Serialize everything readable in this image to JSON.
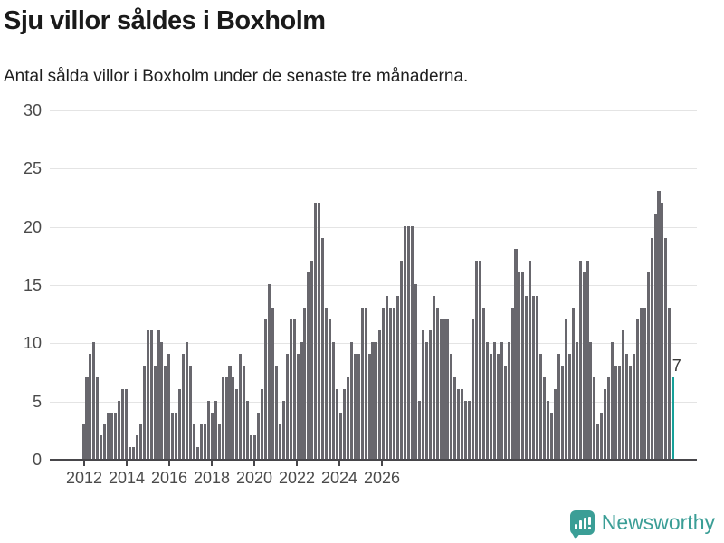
{
  "title": "Sju villor såldes i Boxholm",
  "subtitle": "Antal sålda villor i Boxholm under de senaste tre månaderna.",
  "chart_data": {
    "type": "bar",
    "title": "Sju villor såldes i Boxholm",
    "subtitle": "Antal sålda villor i Boxholm under de senaste tre månaderna.",
    "x_start": "2012-01",
    "x_end": "2025-10",
    "xticks": [
      "2012",
      "2014",
      "2016",
      "2018",
      "2020",
      "2022",
      "2024",
      "2026"
    ],
    "yticks": [
      0,
      5,
      10,
      15,
      20,
      25,
      30
    ],
    "ylim": [
      0,
      30
    ],
    "grid": true,
    "bar_color": "#68676d",
    "highlight_color": "#16a099",
    "last_value_label": "7",
    "values": [
      3,
      7,
      9,
      10,
      7,
      2,
      3,
      4,
      4,
      4,
      5,
      6,
      6,
      1,
      1,
      2,
      3,
      8,
      11,
      11,
      8,
      11,
      10,
      8,
      9,
      4,
      4,
      6,
      9,
      10,
      8,
      3,
      1,
      3,
      3,
      5,
      4,
      5,
      3,
      7,
      7,
      8,
      7,
      6,
      9,
      8,
      5,
      2,
      2,
      4,
      6,
      12,
      15,
      13,
      8,
      3,
      5,
      9,
      12,
      12,
      9,
      10,
      13,
      16,
      17,
      22,
      22,
      19,
      13,
      12,
      10,
      6,
      4,
      6,
      7,
      10,
      9,
      9,
      13,
      13,
      9,
      10,
      10,
      11,
      13,
      14,
      13,
      13,
      14,
      17,
      20,
      20,
      20,
      15,
      5,
      11,
      10,
      11,
      14,
      13,
      12,
      12,
      12,
      9,
      7,
      6,
      6,
      5,
      5,
      12,
      17,
      17,
      13,
      10,
      9,
      10,
      9,
      10,
      8,
      10,
      13,
      18,
      16,
      16,
      14,
      17,
      14,
      14,
      9,
      7,
      5,
      4,
      6,
      9,
      8,
      12,
      9,
      13,
      10,
      17,
      16,
      17,
      10,
      7,
      3,
      4,
      6,
      7,
      10,
      8,
      8,
      11,
      9,
      8,
      9,
      12,
      13,
      13,
      16,
      19,
      21,
      23,
      22,
      19,
      13,
      7
    ]
  },
  "branding": {
    "logo_text": "Newsworthy",
    "brand_color": "#3b9e96"
  }
}
